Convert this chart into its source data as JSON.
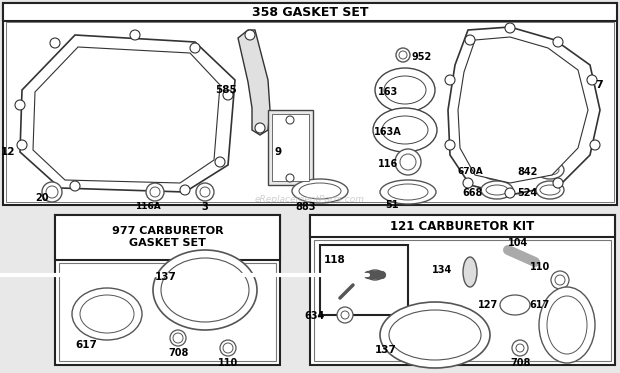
{
  "bg_color": "#e8e8e8",
  "panel_bg": "#ffffff",
  "border_color": "#222222",
  "text_color": "#000000",
  "title_358": "358 GASKET SET",
  "title_977": "977 CARBURETOR\nGASKET SET",
  "title_121": "121 CARBURETOR KIT"
}
